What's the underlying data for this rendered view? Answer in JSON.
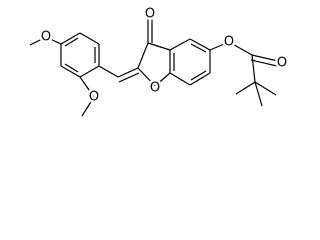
{
  "atoms": [
    {
      "label": "O"
    },
    {
      "label": "O"
    },
    {
      "label": "O"
    },
    {
      "label": "O"
    },
    {
      "label": "O"
    },
    {
      "label": "O"
    }
  ]
}
